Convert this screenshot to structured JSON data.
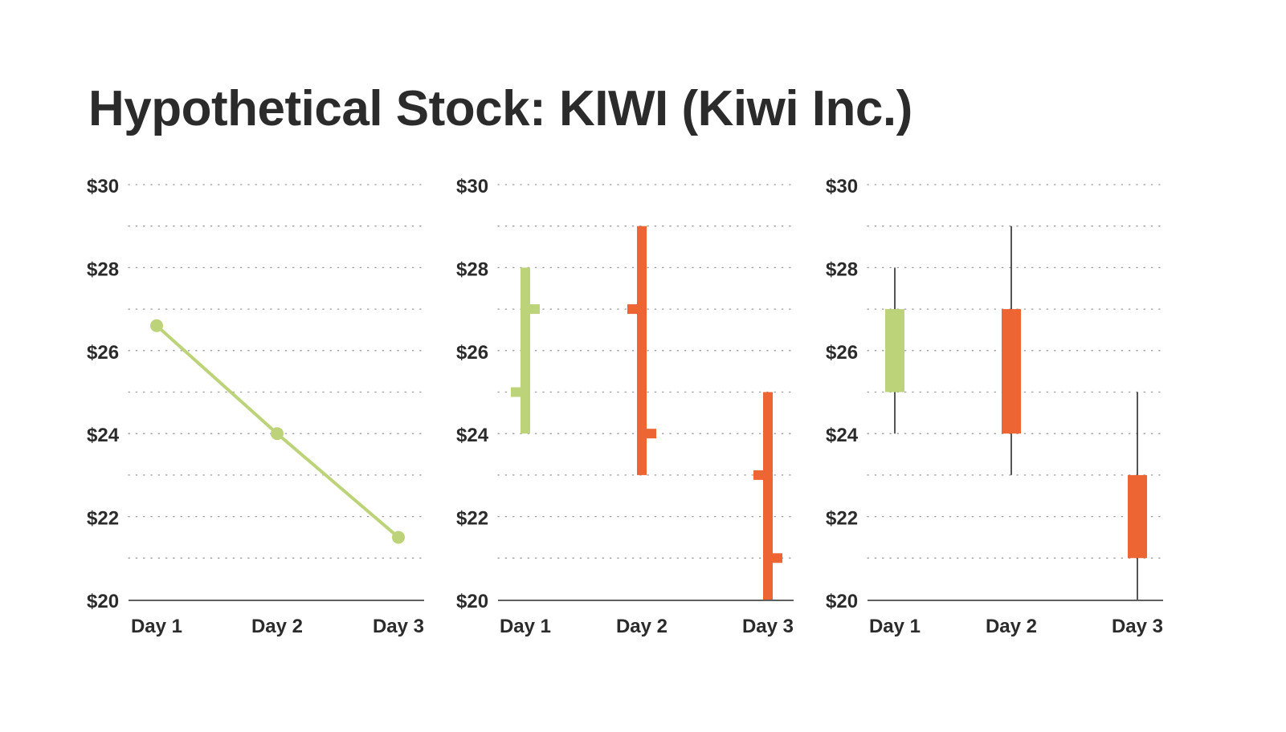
{
  "title": "Hypothetical Stock: KIWI (Kiwi Inc.)",
  "colors": {
    "up": "#bcd379",
    "down": "#ee6534",
    "line": "#bcd379",
    "wick": "#2b2b2b",
    "text": "#2b2b2b",
    "grid": "#9a9a9a"
  },
  "chart_data": [
    {
      "type": "line",
      "categories": [
        "Day 1",
        "Day 2",
        "Day 3"
      ],
      "series": [
        {
          "values": [
            26.6,
            24.0,
            21.5
          ]
        }
      ],
      "ylim": [
        20,
        30
      ],
      "yticks": [
        20,
        22,
        24,
        26,
        28,
        30
      ],
      "ytick_labels": [
        "$20",
        "$22",
        "$24",
        "$26",
        "$28",
        "$30"
      ],
      "grid": true,
      "grid_style": "dotted, every $1"
    },
    {
      "type": "ohlc",
      "categories": [
        "Day 1",
        "Day 2",
        "Day 3"
      ],
      "ohlc": [
        {
          "open": 25,
          "high": 28,
          "low": 24,
          "close": 27
        },
        {
          "open": 27,
          "high": 29,
          "low": 23,
          "close": 24
        },
        {
          "open": 23,
          "high": 25,
          "low": 20,
          "close": 21
        }
      ],
      "ylim": [
        20,
        30
      ],
      "yticks": [
        20,
        22,
        24,
        26,
        28,
        30
      ],
      "ytick_labels": [
        "$20",
        "$22",
        "$24",
        "$26",
        "$28",
        "$30"
      ],
      "grid": true,
      "grid_style": "dotted, every $1"
    },
    {
      "type": "candlestick",
      "categories": [
        "Day 1",
        "Day 2",
        "Day 3"
      ],
      "ohlc": [
        {
          "open": 25,
          "high": 28,
          "low": 24,
          "close": 27
        },
        {
          "open": 27,
          "high": 29,
          "low": 23,
          "close": 24
        },
        {
          "open": 23,
          "high": 25,
          "low": 20,
          "close": 21
        }
      ],
      "ylim": [
        20,
        30
      ],
      "yticks": [
        20,
        22,
        24,
        26,
        28,
        30
      ],
      "ytick_labels": [
        "$20",
        "$22",
        "$24",
        "$26",
        "$28",
        "$30"
      ],
      "grid": true,
      "grid_style": "dotted, every $1"
    }
  ]
}
